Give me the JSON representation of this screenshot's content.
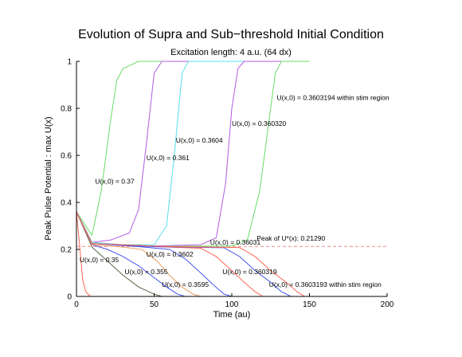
{
  "chart_data": {
    "type": "line",
    "title": "Evolution of Supra and Sub−threshold Initial Condition",
    "subtitle": "Excitation length: 4 a.u. (64 dx)",
    "xlabel": "Time (au)",
    "ylabel": "Peak Pulse Potential : max U(x)",
    "xlim": [
      0,
      200
    ],
    "ylim": [
      0,
      1
    ],
    "xticks": [
      0,
      50,
      100,
      150,
      200
    ],
    "yticks": [
      0,
      0.2,
      0.4,
      0.6,
      0.8,
      1
    ],
    "xtick_labels": [
      "0",
      "50",
      "100",
      "150",
      "200"
    ],
    "ytick_labels": [
      "0",
      "0.2",
      "0.4",
      "0.6",
      "0.8",
      "1"
    ],
    "grid": false,
    "reference_line": {
      "y": 0.2129,
      "label": "Peak of U*(x): 0.21290",
      "color": "#f08c8c"
    },
    "series": [
      {
        "color": "#66dd66",
        "points": [
          [
            0,
            0.36
          ],
          [
            10,
            0.26
          ],
          [
            16,
            0.45
          ],
          [
            22,
            0.75
          ],
          [
            26,
            0.92
          ],
          [
            30,
            0.97
          ],
          [
            40,
            1.0
          ],
          [
            150,
            1.0
          ]
        ]
      },
      {
        "color": "#b45ae0",
        "points": [
          [
            0,
            0.36
          ],
          [
            10,
            0.23
          ],
          [
            22,
            0.24
          ],
          [
            34,
            0.27
          ],
          [
            40,
            0.37
          ],
          [
            45,
            0.65
          ],
          [
            50,
            0.95
          ],
          [
            55,
            1.0
          ],
          [
            150,
            1.0
          ]
        ]
      },
      {
        "color": "#55dde8",
        "points": [
          [
            0,
            0.36
          ],
          [
            10,
            0.23
          ],
          [
            30,
            0.22
          ],
          [
            50,
            0.22
          ],
          [
            58,
            0.3
          ],
          [
            63,
            0.6
          ],
          [
            68,
            0.95
          ],
          [
            72,
            1.0
          ],
          [
            150,
            1.0
          ]
        ]
      },
      {
        "color": "#b45ae0",
        "points": [
          [
            0,
            0.36
          ],
          [
            10,
            0.225
          ],
          [
            40,
            0.213
          ],
          [
            80,
            0.22
          ],
          [
            90,
            0.25
          ],
          [
            96,
            0.48
          ],
          [
            100,
            0.8
          ],
          [
            104,
            0.97
          ],
          [
            108,
            1.0
          ],
          [
            150,
            1.0
          ]
        ]
      },
      {
        "color": "#66dd66",
        "points": [
          [
            0,
            0.36
          ],
          [
            10,
            0.225
          ],
          [
            50,
            0.213
          ],
          [
            100,
            0.215
          ],
          [
            110,
            0.24
          ],
          [
            118,
            0.45
          ],
          [
            124,
            0.75
          ],
          [
            128,
            0.95
          ],
          [
            132,
            1.0
          ],
          [
            150,
            1.0
          ]
        ]
      },
      {
        "color": "#ff6655",
        "points": [
          [
            0,
            0.36
          ],
          [
            2,
            0.22
          ],
          [
            4,
            0.07
          ],
          [
            6,
            0.02
          ],
          [
            9,
            0.0
          ],
          [
            150,
            0.0
          ]
        ]
      },
      {
        "color": "#556644",
        "points": [
          [
            0,
            0.36
          ],
          [
            10,
            0.21
          ],
          [
            20,
            0.15
          ],
          [
            30,
            0.09
          ],
          [
            40,
            0.04
          ],
          [
            50,
            0.01
          ],
          [
            55,
            0.0
          ],
          [
            150,
            0.0
          ]
        ]
      },
      {
        "color": "#4455ee",
        "points": [
          [
            0,
            0.36
          ],
          [
            10,
            0.22
          ],
          [
            20,
            0.2
          ],
          [
            30,
            0.17
          ],
          [
            40,
            0.13
          ],
          [
            50,
            0.08
          ],
          [
            58,
            0.04
          ],
          [
            65,
            0.01
          ],
          [
            70,
            0.0
          ],
          [
            150,
            0.0
          ]
        ]
      },
      {
        "color": "#e8a060",
        "points": [
          [
            0,
            0.36
          ],
          [
            10,
            0.22
          ],
          [
            30,
            0.21
          ],
          [
            42,
            0.2
          ],
          [
            52,
            0.15
          ],
          [
            60,
            0.09
          ],
          [
            68,
            0.04
          ],
          [
            75,
            0.01
          ],
          [
            80,
            0.0
          ],
          [
            150,
            0.0
          ]
        ]
      },
      {
        "color": "#4455ee",
        "points": [
          [
            0,
            0.36
          ],
          [
            10,
            0.225
          ],
          [
            40,
            0.212
          ],
          [
            60,
            0.2
          ],
          [
            70,
            0.16
          ],
          [
            80,
            0.1
          ],
          [
            88,
            0.05
          ],
          [
            95,
            0.01
          ],
          [
            100,
            0.0
          ],
          [
            150,
            0.0
          ]
        ]
      },
      {
        "color": "#ff6655",
        "points": [
          [
            0,
            0.36
          ],
          [
            10,
            0.225
          ],
          [
            50,
            0.212
          ],
          [
            80,
            0.205
          ],
          [
            90,
            0.17
          ],
          [
            100,
            0.11
          ],
          [
            108,
            0.06
          ],
          [
            115,
            0.02
          ],
          [
            120,
            0.0
          ],
          [
            150,
            0.0
          ]
        ]
      },
      {
        "color": "#4455ee",
        "points": [
          [
            0,
            0.36
          ],
          [
            10,
            0.225
          ],
          [
            50,
            0.212
          ],
          [
            95,
            0.207
          ],
          [
            105,
            0.17
          ],
          [
            115,
            0.11
          ],
          [
            125,
            0.06
          ],
          [
            132,
            0.02
          ],
          [
            138,
            0.0
          ],
          [
            150,
            0.0
          ]
        ]
      },
      {
        "color": "#ff6655",
        "points": [
          [
            0,
            0.36
          ],
          [
            10,
            0.225
          ],
          [
            60,
            0.212
          ],
          [
            105,
            0.208
          ],
          [
            115,
            0.17
          ],
          [
            125,
            0.11
          ],
          [
            135,
            0.06
          ],
          [
            142,
            0.02
          ],
          [
            147,
            0.0
          ],
          [
            150,
            0.0
          ]
        ]
      }
    ],
    "annotations": [
      {
        "text": "U(x,0) = 0.37",
        "x": 12,
        "y": 0.48
      },
      {
        "text": "U(x,0) = 0.361",
        "x": 45,
        "y": 0.58
      },
      {
        "text": "U(x,0) = 0.3604",
        "x": 64,
        "y": 0.655
      },
      {
        "text": "U(x,0) = 0.360320",
        "x": 100,
        "y": 0.725
      },
      {
        "text": "U(x,0) = 0.3603194 within stim region",
        "x": 129,
        "y": 0.835
      },
      {
        "text": "U(x,0) = 0.35",
        "x": 2,
        "y": 0.145
      },
      {
        "text": "U(x,0) = 0.355",
        "x": 31,
        "y": 0.095
      },
      {
        "text": "U(x,0) = 0.3602",
        "x": 45,
        "y": 0.17
      },
      {
        "text": "U(x,0) = 0.3595",
        "x": 55,
        "y": 0.04
      },
      {
        "text": "U(x,0) = 0.36031",
        "x": 86,
        "y": 0.22
      },
      {
        "text": "U(x,0) = 0.360319",
        "x": 94,
        "y": 0.095
      },
      {
        "text": "U(x,0) = 0.3603193 within stim region",
        "x": 124,
        "y": 0.04
      }
    ]
  }
}
